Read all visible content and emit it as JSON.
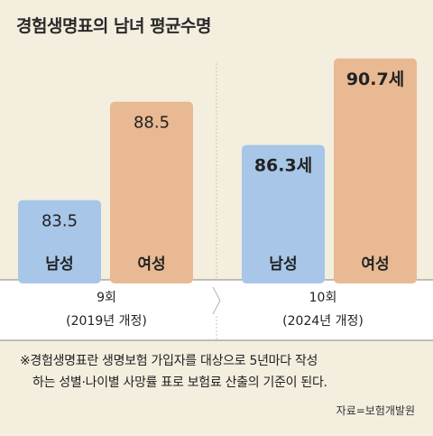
{
  "title": "경험생명표의 남녀 평균수명",
  "chart_data": {
    "type": "bar",
    "groups": [
      {
        "label": "9회",
        "sublabel": "(2019년 개정)"
      },
      {
        "label": "10회",
        "sublabel": "(2024년 개정)"
      }
    ],
    "series": [
      {
        "name": "남성",
        "color": "#a7c6e8",
        "values": [
          83.5,
          86.3
        ],
        "display": [
          "83.5",
          "86.3세"
        ]
      },
      {
        "name": "여성",
        "color": "#e8b993",
        "values": [
          88.5,
          90.7
        ],
        "display": [
          "88.5",
          "90.7세"
        ]
      }
    ]
  },
  "footnote": {
    "line1": "※경험생명표란 생명보험 가입자를 대상으로 5년마다 작성",
    "line2": "하는 성별·나이별 사망률 표로 보험료 산출의 기준이 된다."
  },
  "source": "자료=보험개발원"
}
